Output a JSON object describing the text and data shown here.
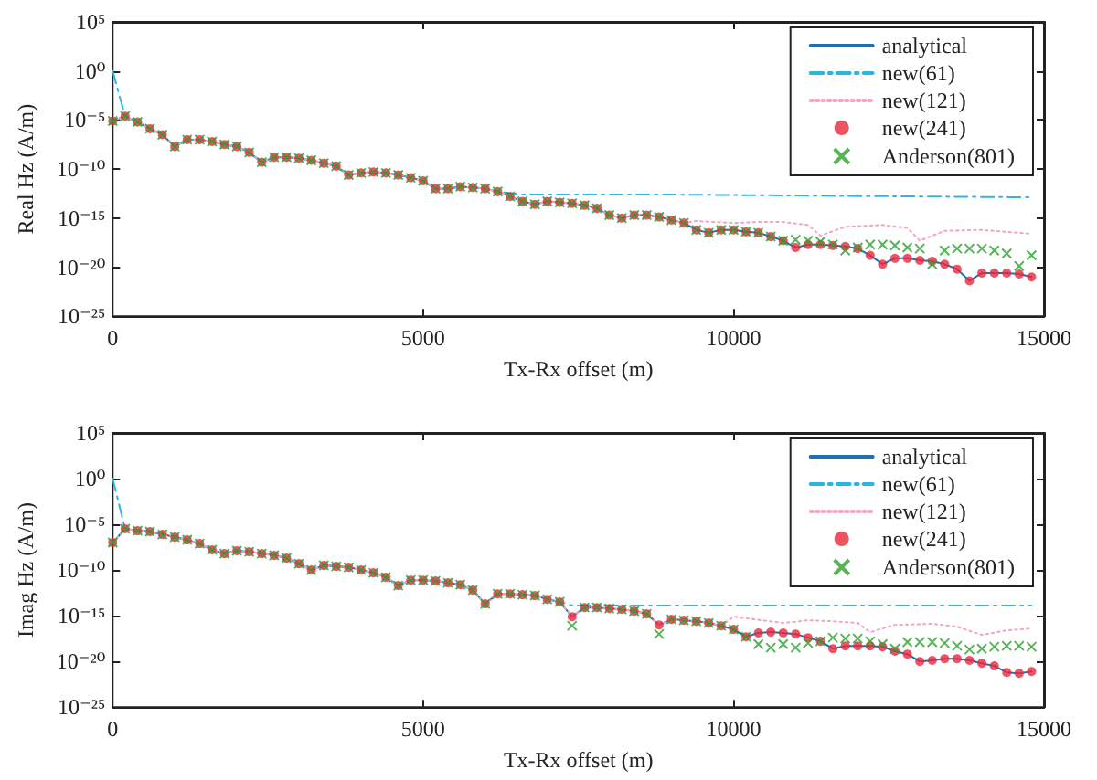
{
  "chart_data": [
    {
      "type": "line",
      "xlabel": "Tx-Rx offset (m)",
      "ylabel": "Real Hz (A/m)",
      "log": "y",
      "grid": false,
      "legend": "top right",
      "xlim": [
        0,
        15000
      ],
      "xticks": [
        0,
        5000,
        10000,
        15000
      ],
      "ylim": [
        1e-25,
        100000
      ],
      "yticks": [
        {
          "value": 1e-25,
          "label": "10⁻²⁵"
        },
        {
          "value": 1e-20,
          "label": "10⁻²⁰"
        },
        {
          "value": 1e-15,
          "label": "10⁻¹⁵"
        },
        {
          "value": 1e-10,
          "label": "10⁻¹⁰"
        },
        {
          "value": 1e-05,
          "label": "10⁻⁵"
        },
        {
          "value": 1,
          "label": "10⁰"
        },
        {
          "value": 100000,
          "label": "10⁵"
        }
      ],
      "x": [
        0,
        200,
        400,
        600,
        800,
        1000,
        1200,
        1400,
        1600,
        1800,
        2000,
        2200,
        2400,
        2600,
        2800,
        3000,
        3200,
        3400,
        3600,
        3800,
        4000,
        4200,
        4400,
        4600,
        4800,
        5000,
        5200,
        5400,
        5600,
        5800,
        6000,
        6200,
        6400,
        6600,
        6800,
        7000,
        7200,
        7400,
        7600,
        7800,
        8000,
        8200,
        8400,
        8600,
        8800,
        9000,
        9200,
        9400,
        9600,
        9800,
        10000,
        10200,
        10400,
        10600,
        10800,
        11000,
        11200,
        11400,
        11600,
        11800,
        12000,
        12200,
        12400,
        12600,
        12800,
        13000,
        13200,
        13400,
        13600,
        13800,
        14000,
        14200,
        14400,
        14600,
        14800
      ],
      "series": [
        {
          "name": "analytical",
          "type": "line",
          "color": "#1f6fb5",
          "marker": "none",
          "line_style": "solid",
          "values": [
            7.9e-06,
            2.5e-05,
            6.3e-06,
            1.3e-06,
            3.2e-07,
            2e-08,
            1e-07,
            1e-07,
            6.3e-08,
            3.2e-08,
            2e-08,
            5e-09,
            5e-10,
            1.6e-09,
            1.6e-09,
            1.3e-09,
            7.9e-10,
            4e-10,
            2e-10,
            2.5e-11,
            4e-11,
            5e-11,
            4e-11,
            2.5e-11,
            1.3e-11,
            6.3e-12,
            1e-12,
            1e-12,
            1.6e-12,
            1.3e-12,
            1e-12,
            5e-13,
            1.6e-13,
            5e-14,
            2.5e-14,
            5e-14,
            4e-14,
            3.2e-14,
            2e-14,
            1e-14,
            2e-15,
            1e-15,
            2e-15,
            2e-15,
            1.3e-15,
            6.3e-16,
            3.2e-16,
            6.3e-17,
            3.2e-17,
            6.3e-17,
            6.3e-17,
            4e-17,
            3.2e-17,
            1.3e-17,
            5e-18,
            1e-18,
            2e-18,
            2e-18,
            1.6e-18,
            1.3e-18,
            7.9e-19,
            1.6e-19,
            2e-20,
            7.9e-20,
            7.9e-20,
            5e-20,
            4e-20,
            2e-20,
            6.3e-21,
            4e-22,
            2.5e-21,
            2.5e-21,
            2.5e-21,
            2e-21,
            1e-21
          ]
        },
        {
          "name": "new(61)",
          "type": "line",
          "color": "#29b6e6",
          "marker": "none",
          "line_style": "dashed",
          "x": [
            0,
            200,
            400,
            600,
            800,
            1000,
            1200,
            1400,
            1600,
            1800,
            2000,
            2200,
            2400,
            2600,
            2800,
            3000,
            3200,
            3400,
            3600,
            3800,
            4000,
            4200,
            4400,
            4600,
            4800,
            5000,
            5200,
            5400,
            5600,
            5800,
            6000,
            6200,
            6600,
            9000,
            11000,
            13000,
            14800
          ],
          "values": [
            1,
            2.5e-05,
            6.3e-06,
            1.3e-06,
            3.2e-07,
            2e-08,
            1e-07,
            1e-07,
            6.3e-08,
            3.2e-08,
            2e-08,
            5e-09,
            5e-10,
            1.6e-09,
            1.6e-09,
            1.3e-09,
            7.9e-10,
            4e-10,
            2e-10,
            2.5e-11,
            4e-11,
            5e-11,
            4e-11,
            2.5e-11,
            1.3e-11,
            6.3e-12,
            1e-12,
            1e-12,
            1.6e-12,
            1.3e-12,
            1e-12,
            5e-13,
            2.5e-13,
            2.5e-13,
            2e-13,
            1.6e-13,
            1.3e-13
          ]
        },
        {
          "name": "new(121)",
          "type": "line",
          "color": "#f2a6c4",
          "marker": "none",
          "line_style": "dotted",
          "x": [
            0,
            200,
            400,
            600,
            800,
            1000,
            1200,
            1400,
            1600,
            1800,
            2000,
            2200,
            2400,
            2600,
            2800,
            3000,
            3200,
            3400,
            3600,
            3800,
            4000,
            4200,
            4400,
            4600,
            4800,
            5000,
            5200,
            5400,
            5600,
            5800,
            6000,
            6200,
            6400,
            6600,
            6800,
            7000,
            7200,
            7400,
            7600,
            7800,
            8000,
            8200,
            8400,
            8600,
            8800,
            9000,
            9200,
            9400,
            10000,
            10400,
            10800,
            11200,
            11400,
            11800,
            12400,
            12800,
            13000,
            13400,
            14000,
            14800
          ],
          "values": [
            7.9e-06,
            2.5e-05,
            6.3e-06,
            1.3e-06,
            3.2e-07,
            2e-08,
            1e-07,
            1e-07,
            6.3e-08,
            3.2e-08,
            2e-08,
            5e-09,
            5e-10,
            1.6e-09,
            1.6e-09,
            1.3e-09,
            7.9e-10,
            4e-10,
            2e-10,
            2.5e-11,
            4e-11,
            5e-11,
            4e-11,
            2.5e-11,
            1.3e-11,
            6.3e-12,
            1e-12,
            1e-12,
            1.6e-12,
            1.3e-12,
            1e-12,
            5e-13,
            1.6e-13,
            5e-14,
            2.5e-14,
            5e-14,
            4e-14,
            3.2e-14,
            2e-14,
            1e-14,
            2e-15,
            1e-15,
            2e-15,
            2e-15,
            1.3e-15,
            6.3e-16,
            3.2e-16,
            5e-16,
            3.2e-16,
            4e-16,
            4e-16,
            2e-16,
            1.6e-17,
            1.3e-16,
            2e-16,
            1e-16,
            5e-18,
            5e-17,
            6.3e-17,
            2.5e-17
          ]
        },
        {
          "name": "new(241)",
          "type": "scatter",
          "color": "#e8283c",
          "marker": "circle",
          "values": [
            7.9e-06,
            2.5e-05,
            6.3e-06,
            1.3e-06,
            3.2e-07,
            2e-08,
            1e-07,
            1e-07,
            6.3e-08,
            3.2e-08,
            2e-08,
            5e-09,
            5e-10,
            1.6e-09,
            1.6e-09,
            1.3e-09,
            7.9e-10,
            4e-10,
            2e-10,
            2.5e-11,
            4e-11,
            5e-11,
            4e-11,
            2.5e-11,
            1.3e-11,
            6.3e-12,
            1e-12,
            1e-12,
            1.6e-12,
            1.3e-12,
            1e-12,
            5e-13,
            1.6e-13,
            5e-14,
            2.5e-14,
            5e-14,
            4e-14,
            3.2e-14,
            2e-14,
            1e-14,
            2e-15,
            1e-15,
            2e-15,
            2e-15,
            1.3e-15,
            6.3e-16,
            3.2e-16,
            6.3e-17,
            3.2e-17,
            6.3e-17,
            6.3e-17,
            4e-17,
            3.2e-17,
            1.3e-17,
            5e-18,
            1e-18,
            2e-18,
            2e-18,
            1.6e-18,
            1.3e-18,
            7.9e-19,
            1.6e-19,
            2e-20,
            7.9e-20,
            7.9e-20,
            5e-20,
            4e-20,
            2e-20,
            6.3e-21,
            4e-22,
            2.5e-21,
            2.5e-21,
            2.5e-21,
            2e-21,
            1e-21
          ]
        },
        {
          "name": "Anderson(801)",
          "type": "scatter",
          "color": "#2ca02c",
          "marker": "cross",
          "values": [
            7.9e-06,
            2.5e-05,
            6.3e-06,
            1.3e-06,
            3.2e-07,
            2e-08,
            1e-07,
            1e-07,
            6.3e-08,
            3.2e-08,
            2e-08,
            5e-09,
            5e-10,
            1.6e-09,
            1.6e-09,
            1.3e-09,
            7.9e-10,
            4e-10,
            2e-10,
            2.5e-11,
            4e-11,
            5e-11,
            4e-11,
            2.5e-11,
            1.3e-11,
            6.3e-12,
            1e-12,
            1e-12,
            1.6e-12,
            1.3e-12,
            1e-12,
            5e-13,
            1.6e-13,
            5e-14,
            2.5e-14,
            5e-14,
            4e-14,
            3.2e-14,
            2e-14,
            1e-14,
            2e-15,
            1e-15,
            2e-15,
            2e-15,
            1.3e-15,
            6.3e-16,
            3.2e-16,
            6.3e-17,
            3.2e-17,
            6.3e-17,
            6.3e-17,
            4e-17,
            3.2e-17,
            1.3e-17,
            5e-18,
            6.3e-18,
            5e-18,
            4e-18,
            2e-18,
            5e-19,
            1e-18,
            2e-18,
            2e-18,
            1.6e-18,
            1e-18,
            7.9e-19,
            2e-20,
            5e-19,
            7.9e-19,
            7.9e-19,
            7.9e-19,
            5e-19,
            2.5e-19,
            1.3e-20,
            1.6e-19
          ]
        }
      ]
    },
    {
      "type": "line",
      "xlabel": "Tx-Rx offset (m)",
      "ylabel": "Imag Hz (A/m)",
      "log": "y",
      "grid": false,
      "legend": "top right",
      "xlim": [
        0,
        15000
      ],
      "xticks": [
        0,
        5000,
        10000,
        15000
      ],
      "ylim": [
        1e-25,
        100000
      ],
      "yticks": [
        {
          "value": 1e-25,
          "label": "10⁻²⁵"
        },
        {
          "value": 1e-20,
          "label": "10⁻²⁰"
        },
        {
          "value": 1e-15,
          "label": "10⁻¹⁵"
        },
        {
          "value": 1e-10,
          "label": "10⁻¹⁰"
        },
        {
          "value": 1e-05,
          "label": "10⁻⁵"
        },
        {
          "value": 1,
          "label": "10⁰"
        },
        {
          "value": 100000,
          "label": "10⁵"
        }
      ],
      "x": [
        0,
        200,
        400,
        600,
        800,
        1000,
        1200,
        1400,
        1600,
        1800,
        2000,
        2200,
        2400,
        2600,
        2800,
        3000,
        3200,
        3400,
        3600,
        3800,
        4000,
        4200,
        4400,
        4600,
        4800,
        5000,
        5200,
        5400,
        5600,
        5800,
        6000,
        6200,
        6400,
        6600,
        6800,
        7000,
        7200,
        7400,
        7600,
        7800,
        8000,
        8200,
        8400,
        8600,
        8800,
        9000,
        9200,
        9400,
        9600,
        9800,
        10000,
        10200,
        10400,
        10600,
        10800,
        11000,
        11200,
        11400,
        11600,
        11800,
        12000,
        12200,
        12400,
        12600,
        12800,
        13000,
        13200,
        13400,
        13600,
        13800,
        14000,
        14200,
        14400,
        14600,
        14800
      ],
      "series": [
        {
          "name": "analytical",
          "type": "line",
          "color": "#1f6fb5",
          "marker": "none",
          "line_style": "solid",
          "values": [
            1e-07,
            3.2e-06,
            2e-06,
            1.6e-06,
            7.9e-07,
            4e-07,
            2e-07,
            7.9e-08,
            1.6e-08,
            6.3e-09,
            1.3e-08,
            1e-08,
            6.3e-09,
            4e-09,
            2e-09,
            5e-10,
            1e-10,
            3.2e-10,
            2.5e-10,
            2e-10,
            1e-10,
            5e-11,
            1.6e-11,
            2e-12,
            7.9e-12,
            7.9e-12,
            6.3e-12,
            4e-12,
            2.5e-12,
            6.3e-13,
            2e-14,
            2.5e-13,
            2.5e-13,
            2e-13,
            1.6e-13,
            6.3e-14,
            3.2e-14,
            7.9e-16,
            7.9e-15,
            7.9e-15,
            6.3e-15,
            5e-15,
            3.2e-15,
            1.6e-15,
            1e-16,
            4e-16,
            3.2e-16,
            2.5e-16,
            1.6e-16,
            7.9e-17,
            3.2e-17,
            5e-18,
            1.3e-17,
            1.6e-17,
            1.3e-17,
            1e-17,
            4e-18,
            1.6e-18,
            2.5e-19,
            5e-19,
            5e-19,
            5e-19,
            4e-19,
            1.3e-19,
            6.3e-20,
            1e-20,
            1.3e-20,
            2e-20,
            2e-20,
            1.3e-20,
            6.3e-21,
            3.2e-21,
            6.3e-22,
            5e-22,
            7.9e-22
          ]
        },
        {
          "name": "new(61)",
          "type": "line",
          "color": "#29b6e6",
          "marker": "none",
          "line_style": "dashed",
          "x": [
            0,
            200,
            400,
            600,
            800,
            1000,
            1200,
            1400,
            1600,
            1800,
            2000,
            2200,
            2400,
            2600,
            2800,
            3000,
            3200,
            3400,
            3600,
            3800,
            4000,
            4200,
            4400,
            4600,
            4800,
            5000,
            5200,
            5400,
            5600,
            5800,
            6000,
            6200,
            6400,
            6600,
            6800,
            7000,
            7200,
            7400,
            9000,
            11000,
            13000,
            14800
          ],
          "values": [
            1,
            3.2e-06,
            2e-06,
            1.6e-06,
            7.9e-07,
            4e-07,
            2e-07,
            7.9e-08,
            1.6e-08,
            6.3e-09,
            1.3e-08,
            1e-08,
            6.3e-09,
            4e-09,
            2e-09,
            5e-10,
            1e-10,
            3.2e-10,
            2.5e-10,
            2e-10,
            1e-10,
            5e-11,
            1.6e-11,
            2e-12,
            7.9e-12,
            7.9e-12,
            6.3e-12,
            4e-12,
            2.5e-12,
            6.3e-13,
            2e-14,
            2.5e-13,
            2.5e-13,
            2e-13,
            1.6e-13,
            6.3e-14,
            3.2e-14,
            1.3e-14,
            1.3e-14,
            1.3e-14,
            1.3e-14,
            1.3e-14
          ]
        },
        {
          "name": "new(121)",
          "type": "line",
          "color": "#f2a6c4",
          "marker": "none",
          "line_style": "dotted",
          "x": [
            0,
            200,
            400,
            600,
            800,
            1000,
            1200,
            1400,
            1600,
            1800,
            2000,
            2200,
            2400,
            2600,
            2800,
            3000,
            3200,
            3400,
            3600,
            3800,
            4000,
            4200,
            4400,
            4600,
            4800,
            5000,
            5200,
            5400,
            5600,
            5800,
            6000,
            6200,
            6400,
            6600,
            6800,
            7000,
            7200,
            7400,
            7600,
            7800,
            8000,
            8200,
            8400,
            8600,
            8800,
            9000,
            9200,
            9400,
            9600,
            9800,
            10000,
            10800,
            11200,
            11600,
            12000,
            12200,
            12600,
            13200,
            13600,
            14000,
            14400,
            14800
          ],
          "values": [
            1e-07,
            3.2e-06,
            2e-06,
            1.6e-06,
            7.9e-07,
            4e-07,
            2e-07,
            7.9e-08,
            1.6e-08,
            6.3e-09,
            1.3e-08,
            1e-08,
            6.3e-09,
            4e-09,
            2e-09,
            5e-10,
            1e-10,
            3.2e-10,
            2.5e-10,
            2e-10,
            1e-10,
            5e-11,
            1.6e-11,
            2e-12,
            7.9e-12,
            7.9e-12,
            6.3e-12,
            4e-12,
            2.5e-12,
            6.3e-13,
            2e-14,
            2.5e-13,
            2.5e-13,
            2e-13,
            1.6e-13,
            6.3e-14,
            3.2e-14,
            7.9e-16,
            7.9e-15,
            7.9e-15,
            6.3e-15,
            5e-15,
            3.2e-15,
            1.6e-15,
            1e-16,
            4e-16,
            3.2e-16,
            2.5e-16,
            1.6e-16,
            7.9e-17,
            7.9e-16,
            1.6e-16,
            3.2e-16,
            2.5e-16,
            1.6e-16,
            1.6e-17,
            1e-16,
            1.3e-16,
            6.3e-17,
            7.9e-18,
            2.5e-17,
            4e-17
          ]
        },
        {
          "name": "new(241)",
          "type": "scatter",
          "color": "#e8283c",
          "marker": "circle",
          "values": [
            1e-07,
            3.2e-06,
            2e-06,
            1.6e-06,
            7.9e-07,
            4e-07,
            2e-07,
            7.9e-08,
            1.6e-08,
            6.3e-09,
            1.3e-08,
            1e-08,
            6.3e-09,
            4e-09,
            2e-09,
            5e-10,
            1e-10,
            3.2e-10,
            2.5e-10,
            2e-10,
            1e-10,
            5e-11,
            1.6e-11,
            2e-12,
            7.9e-12,
            7.9e-12,
            6.3e-12,
            4e-12,
            2.5e-12,
            6.3e-13,
            2e-14,
            2.5e-13,
            2.5e-13,
            2e-13,
            1.6e-13,
            6.3e-14,
            3.2e-14,
            7.9e-16,
            7.9e-15,
            7.9e-15,
            6.3e-15,
            5e-15,
            3.2e-15,
            1.6e-15,
            1e-16,
            4e-16,
            3.2e-16,
            2.5e-16,
            1.6e-16,
            7.9e-17,
            3.2e-17,
            5e-18,
            1.3e-17,
            1.6e-17,
            1.3e-17,
            1e-17,
            4e-18,
            1.6e-18,
            2.5e-19,
            5e-19,
            5e-19,
            5e-19,
            4e-19,
            1.3e-19,
            6.3e-20,
            1e-20,
            1.3e-20,
            2e-20,
            2e-20,
            1.3e-20,
            6.3e-21,
            3.2e-21,
            6.3e-22,
            5e-22,
            7.9e-22
          ]
        },
        {
          "name": "Anderson(801)",
          "type": "scatter",
          "color": "#2ca02c",
          "marker": "cross",
          "values": [
            1e-07,
            3.2e-06,
            2e-06,
            1.6e-06,
            7.9e-07,
            4e-07,
            2e-07,
            7.9e-08,
            1.6e-08,
            6.3e-09,
            1.3e-08,
            1e-08,
            6.3e-09,
            4e-09,
            2e-09,
            5e-10,
            1e-10,
            3.2e-10,
            2.5e-10,
            2e-10,
            1e-10,
            5e-11,
            1.6e-11,
            2e-12,
            7.9e-12,
            7.9e-12,
            6.3e-12,
            4e-12,
            2.5e-12,
            6.3e-13,
            2e-14,
            2.5e-13,
            2.5e-13,
            2e-13,
            1.6e-13,
            6.3e-14,
            3.2e-14,
            7.9e-17,
            7.9e-15,
            7.9e-15,
            6.3e-15,
            5e-15,
            3.2e-15,
            1.6e-15,
            1e-17,
            4e-16,
            3.2e-16,
            2.5e-16,
            1.6e-16,
            7.9e-17,
            3.2e-17,
            5e-18,
            7.9e-19,
            3.2e-19,
            7.9e-19,
            3.2e-19,
            1e-18,
            1.6e-18,
            4e-18,
            3.2e-18,
            3.2e-18,
            1.6e-18,
            7.9e-19,
            2.5e-19,
            1.3e-18,
            1.3e-18,
            1.3e-18,
            1e-18,
            5e-19,
            2e-19,
            2.5e-19,
            4e-19,
            5e-19,
            5e-19,
            4e-19
          ]
        }
      ]
    }
  ]
}
